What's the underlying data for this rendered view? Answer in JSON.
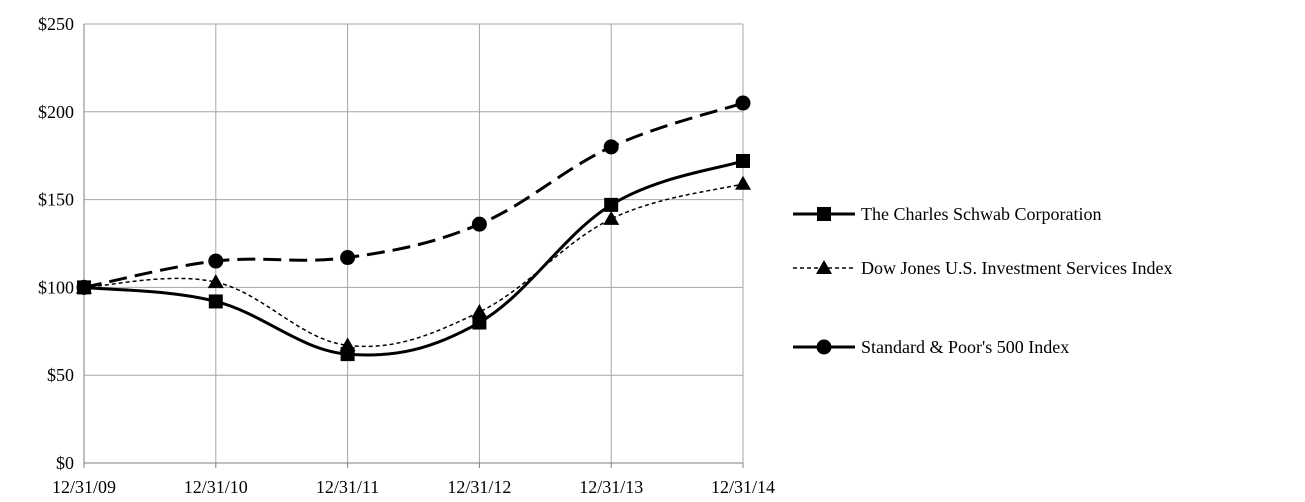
{
  "chart_data": {
    "type": "line",
    "title": "",
    "xlabel": "",
    "ylabel": "",
    "categories": [
      "12/31/09",
      "12/31/10",
      "12/31/11",
      "12/31/12",
      "12/31/13",
      "12/31/14"
    ],
    "ylim": [
      0,
      250
    ],
    "yticks": [
      0,
      50,
      100,
      150,
      200,
      250
    ],
    "ytick_labels": [
      "$0",
      "$50",
      "$100",
      "$150",
      "$200",
      "$250"
    ],
    "grid": true,
    "legend_position": "right",
    "series": [
      {
        "name": "The Charles Schwab Corporation",
        "values": [
          100,
          92,
          62,
          80,
          147,
          172
        ],
        "marker": "square",
        "line_style": "solid",
        "color": "#000000"
      },
      {
        "name": "Dow Jones U.S. Investment Services Index",
        "values": [
          100,
          103,
          67,
          86,
          139,
          159
        ],
        "marker": "triangle",
        "line_style": "dotted",
        "color": "#000000"
      },
      {
        "name": "Standard & Poor's 500 Index",
        "values": [
          100,
          115,
          117,
          136,
          180,
          205
        ],
        "marker": "circle",
        "line_style": "dashed",
        "color": "#000000"
      }
    ]
  }
}
